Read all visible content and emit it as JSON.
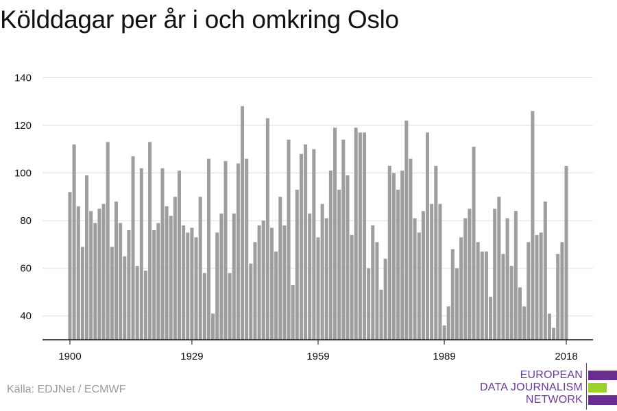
{
  "title": "Kölddagar per år i och omkring Oslo",
  "source": "Källa: EDJNet / ECMWF",
  "logo": {
    "lines": [
      "EUROPEAN",
      "DATA JOURNALISM",
      "NETWORK"
    ],
    "colors": {
      "purple": "#6b2c91",
      "green": "#9bd12b"
    }
  },
  "colors": {
    "bar": "#9e9e9e",
    "grid": "#dddddd",
    "axis": "#111111"
  },
  "chart_data": {
    "type": "bar",
    "xlabel": "",
    "ylabel": "",
    "ylim": [
      30,
      145
    ],
    "yticks": [
      40,
      60,
      80,
      100,
      120,
      140
    ],
    "xticks": [
      1900,
      1929,
      1959,
      1989,
      2018
    ],
    "grid": true,
    "x": [
      1900,
      1901,
      1902,
      1903,
      1904,
      1905,
      1906,
      1907,
      1908,
      1909,
      1910,
      1911,
      1912,
      1913,
      1914,
      1915,
      1916,
      1917,
      1918,
      1919,
      1920,
      1921,
      1922,
      1923,
      1924,
      1925,
      1926,
      1927,
      1928,
      1929,
      1930,
      1931,
      1932,
      1933,
      1934,
      1935,
      1936,
      1937,
      1938,
      1939,
      1940,
      1941,
      1942,
      1943,
      1944,
      1945,
      1946,
      1947,
      1948,
      1949,
      1950,
      1951,
      1952,
      1953,
      1954,
      1955,
      1956,
      1957,
      1958,
      1959,
      1960,
      1961,
      1962,
      1963,
      1964,
      1965,
      1966,
      1967,
      1968,
      1969,
      1970,
      1971,
      1972,
      1973,
      1974,
      1975,
      1976,
      1977,
      1978,
      1979,
      1980,
      1981,
      1982,
      1983,
      1984,
      1985,
      1986,
      1987,
      1988,
      1989,
      1990,
      1991,
      1992,
      1993,
      1994,
      1995,
      1996,
      1997,
      1998,
      1999,
      2000,
      2001,
      2002,
      2003,
      2004,
      2005,
      2006,
      2007,
      2008,
      2009,
      2010,
      2011,
      2012,
      2013,
      2014,
      2015,
      2016,
      2017,
      2018
    ],
    "values": [
      92,
      112,
      86,
      69,
      99,
      84,
      79,
      85,
      87,
      113,
      69,
      88,
      79,
      65,
      76,
      107,
      61,
      102,
      59,
      113,
      76,
      79,
      102,
      86,
      82,
      90,
      101,
      78,
      75,
      77,
      73,
      90,
      58,
      106,
      41,
      75,
      83,
      105,
      58,
      83,
      104,
      128,
      106,
      62,
      71,
      78,
      80,
      123,
      77,
      67,
      90,
      78,
      114,
      53,
      93,
      108,
      112,
      83,
      110,
      73,
      87,
      81,
      101,
      119,
      93,
      114,
      99,
      74,
      119,
      117,
      117,
      60,
      78,
      71,
      51,
      64,
      103,
      100,
      93,
      101,
      122,
      106,
      81,
      75,
      84,
      117,
      87,
      103,
      87,
      36,
      44,
      68,
      60,
      73,
      81,
      85,
      111,
      71,
      67,
      67,
      48,
      85,
      90,
      66,
      81,
      61,
      84,
      52,
      44,
      71,
      126,
      74,
      75,
      88,
      41,
      35,
      66,
      71,
      103
    ]
  }
}
